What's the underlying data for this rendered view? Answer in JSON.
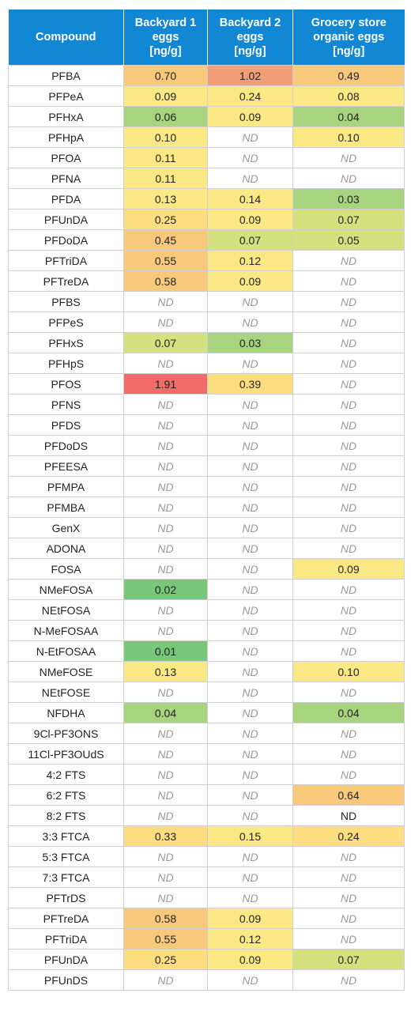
{
  "headers": [
    {
      "lines": [
        "Compound"
      ]
    },
    {
      "lines": [
        "Backyard 1",
        "eggs",
        "[ng/g]"
      ]
    },
    {
      "lines": [
        "Backyard 2",
        "eggs",
        "[ng/g]"
      ]
    },
    {
      "lines": [
        "Grocery store",
        "organic eggs",
        "[ng/g]"
      ]
    }
  ],
  "colors": {
    "header_bg": "#1287d4",
    "very_high": "#ef6b6c",
    "high": "#f39d77",
    "mid_high": "#f8c97b",
    "mid": "#fcdd80",
    "low_mid": "#f9e883",
    "low": "#d5e17f",
    "very_low": "#a8d37f",
    "lowest": "#79c77b"
  },
  "rows": [
    {
      "name": "PFBA",
      "cells": [
        {
          "v": "0.70",
          "c": "mid_high"
        },
        {
          "v": "1.02",
          "c": "high"
        },
        {
          "v": "0.49",
          "c": "mid_high"
        }
      ]
    },
    {
      "name": "PFPeA",
      "cells": [
        {
          "v": "0.09",
          "c": "low_mid"
        },
        {
          "v": "0.24",
          "c": "low_mid"
        },
        {
          "v": "0.08",
          "c": "low_mid"
        }
      ]
    },
    {
      "name": "PFHxA",
      "cells": [
        {
          "v": "0.06",
          "c": "very_low"
        },
        {
          "v": "0.09",
          "c": "low_mid"
        },
        {
          "v": "0.04",
          "c": "very_low"
        }
      ]
    },
    {
      "name": "PFHpA",
      "cells": [
        {
          "v": "0.10",
          "c": "low_mid"
        },
        {
          "v": "ND",
          "c": "nd"
        },
        {
          "v": "0.10",
          "c": "low_mid"
        }
      ]
    },
    {
      "name": "PFOA",
      "cells": [
        {
          "v": "0.11",
          "c": "low_mid"
        },
        {
          "v": "ND",
          "c": "nd"
        },
        {
          "v": "ND",
          "c": "nd"
        }
      ]
    },
    {
      "name": "PFNA",
      "cells": [
        {
          "v": "0.11",
          "c": "low_mid"
        },
        {
          "v": "ND",
          "c": "nd"
        },
        {
          "v": "ND",
          "c": "nd"
        }
      ]
    },
    {
      "name": "PFDA",
      "cells": [
        {
          "v": "0.13",
          "c": "low_mid"
        },
        {
          "v": "0.14",
          "c": "low_mid"
        },
        {
          "v": "0.03",
          "c": "very_low"
        }
      ]
    },
    {
      "name": "PFUnDA",
      "cells": [
        {
          "v": "0.25",
          "c": "mid"
        },
        {
          "v": "0.09",
          "c": "low_mid"
        },
        {
          "v": "0.07",
          "c": "low"
        }
      ]
    },
    {
      "name": "PFDoDA",
      "cells": [
        {
          "v": "0.45",
          "c": "mid_high"
        },
        {
          "v": "0.07",
          "c": "low"
        },
        {
          "v": "0.05",
          "c": "low"
        }
      ]
    },
    {
      "name": "PFTriDA",
      "cells": [
        {
          "v": "0.55",
          "c": "mid_high"
        },
        {
          "v": "0.12",
          "c": "low_mid"
        },
        {
          "v": "ND",
          "c": "nd"
        }
      ]
    },
    {
      "name": "PFTreDA",
      "cells": [
        {
          "v": "0.58",
          "c": "mid_high"
        },
        {
          "v": "0.09",
          "c": "low_mid"
        },
        {
          "v": "ND",
          "c": "nd"
        }
      ]
    },
    {
      "name": "PFBS",
      "cells": [
        {
          "v": "ND",
          "c": "nd"
        },
        {
          "v": "ND",
          "c": "nd"
        },
        {
          "v": "ND",
          "c": "nd"
        }
      ]
    },
    {
      "name": "PFPeS",
      "cells": [
        {
          "v": "ND",
          "c": "nd"
        },
        {
          "v": "ND",
          "c": "nd"
        },
        {
          "v": "ND",
          "c": "nd"
        }
      ]
    },
    {
      "name": "PFHxS",
      "cells": [
        {
          "v": "0.07",
          "c": "low"
        },
        {
          "v": "0.03",
          "c": "very_low"
        },
        {
          "v": "ND",
          "c": "nd"
        }
      ]
    },
    {
      "name": "PFHpS",
      "cells": [
        {
          "v": "ND",
          "c": "nd"
        },
        {
          "v": "ND",
          "c": "nd"
        },
        {
          "v": "ND",
          "c": "nd"
        }
      ]
    },
    {
      "name": "PFOS",
      "cells": [
        {
          "v": "1.91",
          "c": "very_high"
        },
        {
          "v": "0.39",
          "c": "mid"
        },
        {
          "v": "ND",
          "c": "nd"
        }
      ]
    },
    {
      "name": "PFNS",
      "cells": [
        {
          "v": "ND",
          "c": "nd"
        },
        {
          "v": "ND",
          "c": "nd"
        },
        {
          "v": "ND",
          "c": "nd"
        }
      ]
    },
    {
      "name": "PFDS",
      "cells": [
        {
          "v": "ND",
          "c": "nd"
        },
        {
          "v": "ND",
          "c": "nd"
        },
        {
          "v": "ND",
          "c": "nd"
        }
      ]
    },
    {
      "name": "PFDoDS",
      "cells": [
        {
          "v": "ND",
          "c": "nd"
        },
        {
          "v": "ND",
          "c": "nd"
        },
        {
          "v": "ND",
          "c": "nd"
        }
      ]
    },
    {
      "name": "PFEESA",
      "cells": [
        {
          "v": "ND",
          "c": "nd"
        },
        {
          "v": "ND",
          "c": "nd"
        },
        {
          "v": "ND",
          "c": "nd"
        }
      ]
    },
    {
      "name": "PFMPA",
      "cells": [
        {
          "v": "ND",
          "c": "nd"
        },
        {
          "v": "ND",
          "c": "nd"
        },
        {
          "v": "ND",
          "c": "nd"
        }
      ]
    },
    {
      "name": "PFMBA",
      "cells": [
        {
          "v": "ND",
          "c": "nd"
        },
        {
          "v": "ND",
          "c": "nd"
        },
        {
          "v": "ND",
          "c": "nd"
        }
      ]
    },
    {
      "name": "GenX",
      "cells": [
        {
          "v": "ND",
          "c": "nd"
        },
        {
          "v": "ND",
          "c": "nd"
        },
        {
          "v": "ND",
          "c": "nd"
        }
      ]
    },
    {
      "name": "ADONA",
      "cells": [
        {
          "v": "ND",
          "c": "nd"
        },
        {
          "v": "ND",
          "c": "nd"
        },
        {
          "v": "ND",
          "c": "nd"
        }
      ]
    },
    {
      "name": "FOSA",
      "cells": [
        {
          "v": "ND",
          "c": "nd"
        },
        {
          "v": "ND",
          "c": "nd"
        },
        {
          "v": "0.09",
          "c": "low_mid"
        }
      ]
    },
    {
      "name": "NMeFOSA",
      "cells": [
        {
          "v": "0.02",
          "c": "lowest"
        },
        {
          "v": "ND",
          "c": "nd"
        },
        {
          "v": "ND",
          "c": "nd"
        }
      ]
    },
    {
      "name": "NEtFOSA",
      "cells": [
        {
          "v": "ND",
          "c": "nd"
        },
        {
          "v": "ND",
          "c": "nd"
        },
        {
          "v": "ND",
          "c": "nd"
        }
      ]
    },
    {
      "name": "N-MeFOSAA",
      "cells": [
        {
          "v": "ND",
          "c": "nd"
        },
        {
          "v": "ND",
          "c": "nd"
        },
        {
          "v": "ND",
          "c": "nd"
        }
      ]
    },
    {
      "name": "N-EtFOSAA",
      "cells": [
        {
          "v": "0.01",
          "c": "lowest"
        },
        {
          "v": "ND",
          "c": "nd"
        },
        {
          "v": "ND",
          "c": "nd"
        }
      ]
    },
    {
      "name": "NMeFOSE",
      "cells": [
        {
          "v": "0.13",
          "c": "low_mid"
        },
        {
          "v": "ND",
          "c": "nd"
        },
        {
          "v": "0.10",
          "c": "low_mid"
        }
      ]
    },
    {
      "name": "NEtFOSE",
      "cells": [
        {
          "v": "ND",
          "c": "nd"
        },
        {
          "v": "ND",
          "c": "nd"
        },
        {
          "v": "ND",
          "c": "nd"
        }
      ]
    },
    {
      "name": "NFDHA",
      "cells": [
        {
          "v": "0.04",
          "c": "very_low"
        },
        {
          "v": "ND",
          "c": "nd"
        },
        {
          "v": "0.04",
          "c": "very_low"
        }
      ]
    },
    {
      "name": "9Cl-PF3ONS",
      "cells": [
        {
          "v": "ND",
          "c": "nd"
        },
        {
          "v": "ND",
          "c": "nd"
        },
        {
          "v": "ND",
          "c": "nd"
        }
      ]
    },
    {
      "name": "11Cl-PF3OUdS",
      "cells": [
        {
          "v": "ND",
          "c": "nd"
        },
        {
          "v": "ND",
          "c": "nd"
        },
        {
          "v": "ND",
          "c": "nd"
        }
      ]
    },
    {
      "name": "4:2 FTS",
      "cells": [
        {
          "v": "ND",
          "c": "nd"
        },
        {
          "v": "ND",
          "c": "nd"
        },
        {
          "v": "ND",
          "c": "nd"
        }
      ]
    },
    {
      "name": "6:2 FTS",
      "cells": [
        {
          "v": "ND",
          "c": "nd"
        },
        {
          "v": "ND",
          "c": "nd"
        },
        {
          "v": "0.64",
          "c": "mid_high"
        }
      ]
    },
    {
      "name": "8:2 FTS",
      "cells": [
        {
          "v": "ND",
          "c": "nd"
        },
        {
          "v": "ND",
          "c": "nd"
        },
        {
          "v": "ND",
          "c": "ndplain"
        }
      ]
    },
    {
      "name": "3:3 FTCA",
      "cells": [
        {
          "v": "0.33",
          "c": "mid"
        },
        {
          "v": "0.15",
          "c": "low_mid"
        },
        {
          "v": "0.24",
          "c": "mid"
        }
      ]
    },
    {
      "name": "5:3 FTCA",
      "cells": [
        {
          "v": "ND",
          "c": "nd"
        },
        {
          "v": "ND",
          "c": "nd"
        },
        {
          "v": "ND",
          "c": "nd"
        }
      ]
    },
    {
      "name": "7:3 FTCA",
      "cells": [
        {
          "v": "ND",
          "c": "nd"
        },
        {
          "v": "ND",
          "c": "nd"
        },
        {
          "v": "ND",
          "c": "nd"
        }
      ]
    },
    {
      "name": "PFTrDS",
      "cells": [
        {
          "v": "ND",
          "c": "nd"
        },
        {
          "v": "ND",
          "c": "nd"
        },
        {
          "v": "ND",
          "c": "nd"
        }
      ]
    },
    {
      "name": "PFTreDA",
      "cells": [
        {
          "v": "0.58",
          "c": "mid_high"
        },
        {
          "v": "0.09",
          "c": "low_mid"
        },
        {
          "v": "ND",
          "c": "nd"
        }
      ]
    },
    {
      "name": "PFTriDA",
      "cells": [
        {
          "v": "0.55",
          "c": "mid_high"
        },
        {
          "v": "0.12",
          "c": "low_mid"
        },
        {
          "v": "ND",
          "c": "nd"
        }
      ]
    },
    {
      "name": "PFUnDA",
      "cells": [
        {
          "v": "0.25",
          "c": "mid"
        },
        {
          "v": "0.09",
          "c": "low_mid"
        },
        {
          "v": "0.07",
          "c": "low"
        }
      ]
    },
    {
      "name": "PFUnDS",
      "cells": [
        {
          "v": "ND",
          "c": "nd"
        },
        {
          "v": "ND",
          "c": "nd"
        },
        {
          "v": "ND",
          "c": "nd"
        }
      ]
    }
  ]
}
